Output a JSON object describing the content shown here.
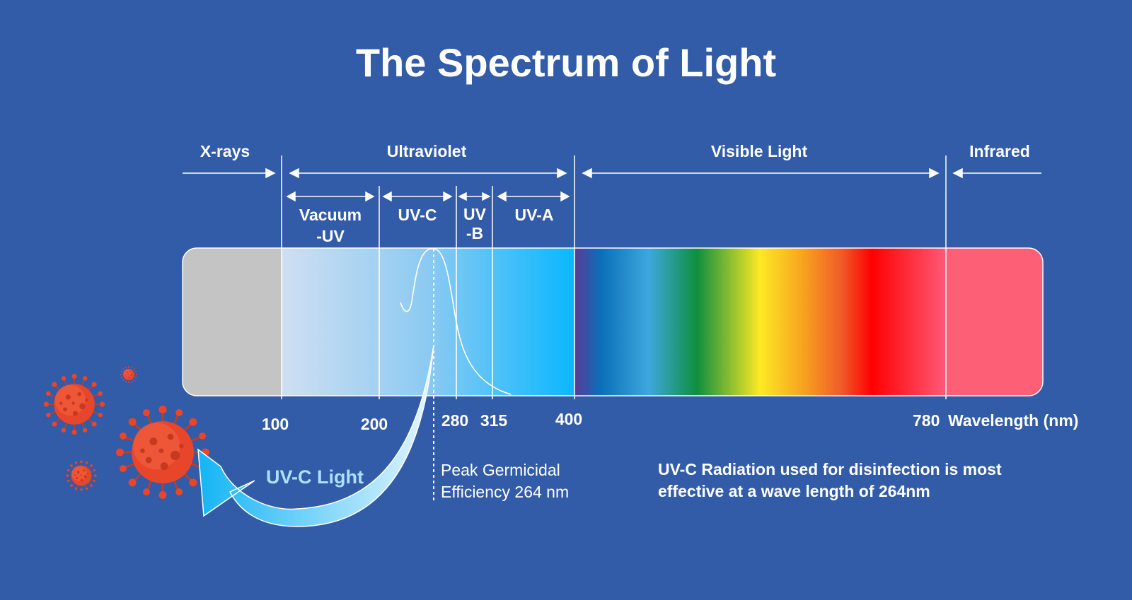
{
  "title": "The Spectrum of Light",
  "colors": {
    "background": "#325ba8",
    "text": "#ffffff",
    "xray_band": "#c4c4c4",
    "infrared_band": "#fd5f77",
    "uv_light_text": "#aee0ff",
    "virus": "#e8462b"
  },
  "regions": {
    "xrays": "X-rays",
    "ultraviolet": "Ultraviolet",
    "visible": "Visible Light",
    "infrared": "Infrared"
  },
  "uv_subbands": {
    "vacuum_uv": [
      "Vacuum",
      "-UV"
    ],
    "uvc": "UV-C",
    "uvb": [
      "UV",
      "-B"
    ],
    "uva": "UV-A"
  },
  "wavelength_ticks": {
    "t100": "100",
    "t200": "200",
    "t280": "280",
    "t315": "315",
    "t400": "400",
    "t780": "780"
  },
  "axis_label": "Wavelength (nm)",
  "peak_note": [
    "Peak Germicidal",
    "Efficiency 264 nm"
  ],
  "uvc_light_label": "UV-C Light",
  "description": [
    "UV-C Radiation used for disinfection is most",
    "effective at a wave length of 264nm"
  ],
  "icons": [
    "virus-icon",
    "arrow-icon"
  ]
}
